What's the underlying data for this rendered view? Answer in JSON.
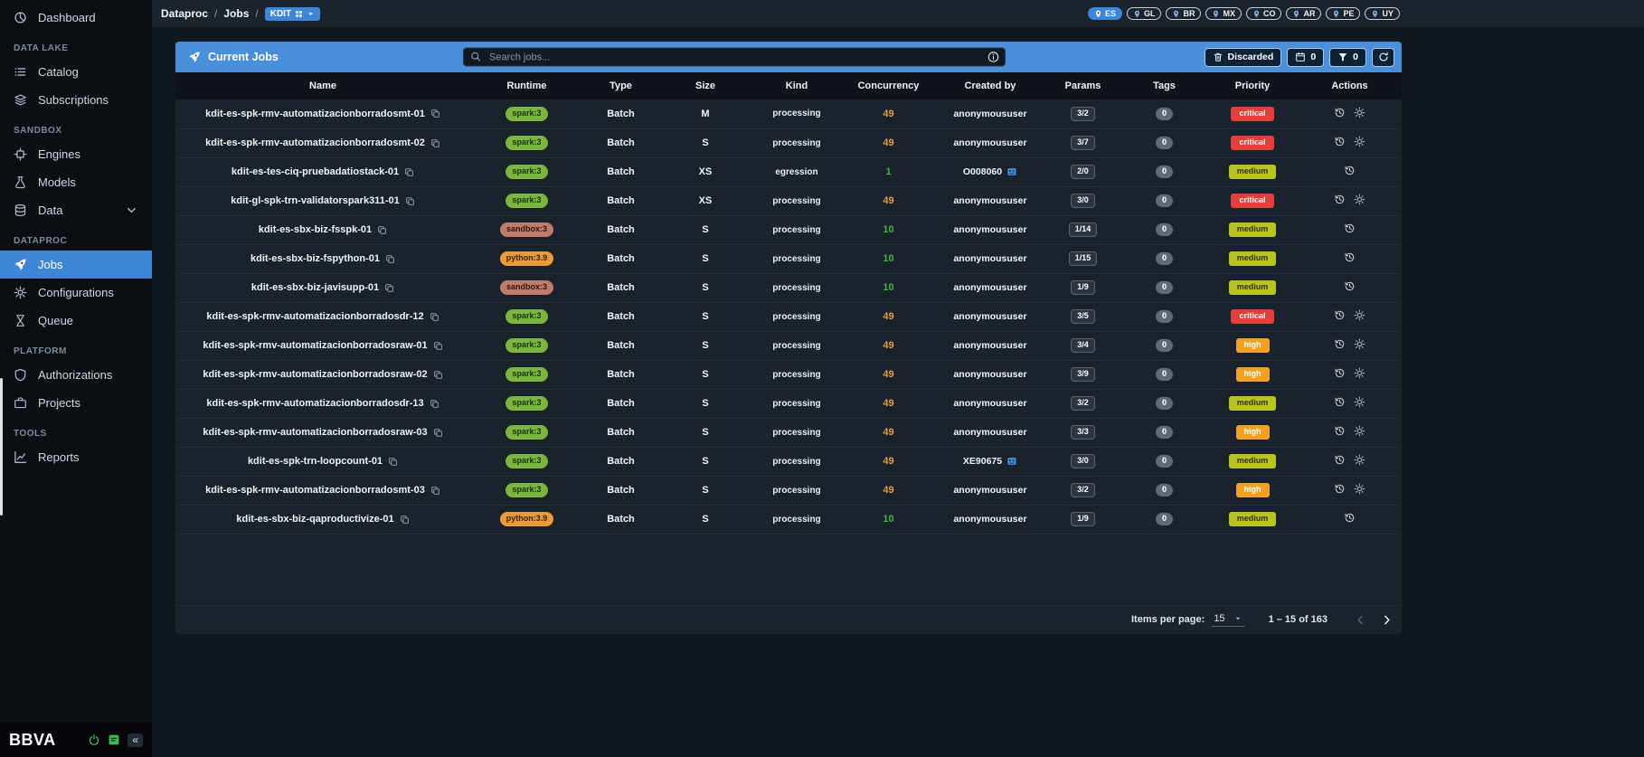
{
  "colors": {
    "accent": "#3f87d6",
    "header_blue": "#4a8fd9",
    "spark_badge": "#7cb53e",
    "sandbox_badge": "#bc7d6b",
    "python_badge": "#e89a3c",
    "priority_critical": "#e4403a",
    "priority_high": "#f0a028",
    "priority_medium": "#b8c426",
    "concurrency_busy": "#e8a23d",
    "concurrency_free": "#43b54a",
    "status_green": "#3fb950"
  },
  "topbar": {
    "breadcrumb": [
      "Dataproc",
      "Jobs"
    ],
    "env_badge": "KDIT",
    "regions": [
      {
        "code": "ES",
        "active": true
      },
      {
        "code": "GL",
        "active": false
      },
      {
        "code": "BR",
        "active": false
      },
      {
        "code": "MX",
        "active": false
      },
      {
        "code": "CO",
        "active": false
      },
      {
        "code": "AR",
        "active": false
      },
      {
        "code": "PE",
        "active": false
      },
      {
        "code": "UY",
        "active": false
      }
    ]
  },
  "sidebar": {
    "logo": "BBVA",
    "sections": [
      {
        "title": "",
        "items": [
          {
            "label": "Dashboard",
            "icon": "dashboard",
            "active": false,
            "expandable": false
          }
        ]
      },
      {
        "title": "DATA LAKE",
        "items": [
          {
            "label": "Catalog",
            "icon": "catalog",
            "active": false,
            "expandable": false
          },
          {
            "label": "Subscriptions",
            "icon": "subscriptions",
            "active": false,
            "expandable": false
          }
        ]
      },
      {
        "title": "SANDBOX",
        "items": [
          {
            "label": "Engines",
            "icon": "engines",
            "active": false,
            "expandable": false
          },
          {
            "label": "Models",
            "icon": "models",
            "active": false,
            "expandable": false
          },
          {
            "label": "Data",
            "icon": "data",
            "active": false,
            "expandable": true
          }
        ]
      },
      {
        "title": "DATAPROC",
        "items": [
          {
            "label": "Jobs",
            "icon": "jobs",
            "active": true,
            "expandable": false
          },
          {
            "label": "Configurations",
            "icon": "configurations",
            "active": false,
            "expandable": false
          },
          {
            "label": "Queue",
            "icon": "queue",
            "active": false,
            "expandable": false
          }
        ]
      },
      {
        "title": "PLATFORM",
        "items": [
          {
            "label": "Authorizations",
            "icon": "authorizations",
            "active": false,
            "expandable": false
          },
          {
            "label": "Projects",
            "icon": "projects",
            "active": false,
            "expandable": false
          }
        ]
      },
      {
        "title": "TOOLS",
        "items": [
          {
            "label": "Reports",
            "icon": "reports",
            "active": false,
            "expandable": false
          }
        ]
      }
    ]
  },
  "panel": {
    "title": "Current Jobs",
    "search_placeholder": "Search jobs...",
    "buttons": {
      "discarded": "Discarded",
      "schedule_count": "0",
      "filter_count": "0"
    }
  },
  "table": {
    "columns": [
      "Name",
      "Runtime",
      "Type",
      "Size",
      "Kind",
      "Concurrency",
      "Created by",
      "Params",
      "Tags",
      "Priority",
      "Actions"
    ],
    "rows": [
      {
        "name": "kdit-es-spk-rmv-automatizacionborradosmt-01",
        "runtime": "spark:3",
        "runtime_kind": "spark",
        "type": "Batch",
        "size": "M",
        "kind": "processing",
        "concurrency": "49",
        "concurrency_state": "busy",
        "created_by": "anonymoususer",
        "created_by_badge": false,
        "params": "3/2",
        "tags": "0",
        "priority": "critical",
        "has_settings": true
      },
      {
        "name": "kdit-es-spk-rmv-automatizacionborradosmt-02",
        "runtime": "spark:3",
        "runtime_kind": "spark",
        "type": "Batch",
        "size": "S",
        "kind": "processing",
        "concurrency": "49",
        "concurrency_state": "busy",
        "created_by": "anonymoususer",
        "created_by_badge": false,
        "params": "3/7",
        "tags": "0",
        "priority": "critical",
        "has_settings": true
      },
      {
        "name": "kdit-es-tes-ciq-pruebadatiostack-01",
        "runtime": "spark:3",
        "runtime_kind": "spark",
        "type": "Batch",
        "size": "XS",
        "kind": "egression",
        "concurrency": "1",
        "concurrency_state": "free",
        "created_by": "O008060",
        "created_by_badge": true,
        "params": "2/0",
        "tags": "0",
        "priority": "medium",
        "has_settings": false
      },
      {
        "name": "kdit-gl-spk-trn-validatorspark311-01",
        "runtime": "spark:3",
        "runtime_kind": "spark",
        "type": "Batch",
        "size": "XS",
        "kind": "processing",
        "concurrency": "49",
        "concurrency_state": "busy",
        "created_by": "anonymoususer",
        "created_by_badge": false,
        "params": "3/0",
        "tags": "0",
        "priority": "critical",
        "has_settings": true
      },
      {
        "name": "kdit-es-sbx-biz-fsspk-01",
        "runtime": "sandbox:3",
        "runtime_kind": "sandbox",
        "type": "Batch",
        "size": "S",
        "kind": "processing",
        "concurrency": "10",
        "concurrency_state": "free",
        "created_by": "anonymoususer",
        "created_by_badge": false,
        "params": "1/14",
        "tags": "0",
        "priority": "medium",
        "has_settings": false
      },
      {
        "name": "kdit-es-sbx-biz-fspython-01",
        "runtime": "python:3.9",
        "runtime_kind": "python",
        "type": "Batch",
        "size": "S",
        "kind": "processing",
        "concurrency": "10",
        "concurrency_state": "free",
        "created_by": "anonymoususer",
        "created_by_badge": false,
        "params": "1/15",
        "tags": "0",
        "priority": "medium",
        "has_settings": false
      },
      {
        "name": "kdit-es-sbx-biz-javisupp-01",
        "runtime": "sandbox:3",
        "runtime_kind": "sandbox",
        "type": "Batch",
        "size": "S",
        "kind": "processing",
        "concurrency": "10",
        "concurrency_state": "free",
        "created_by": "anonymoususer",
        "created_by_badge": false,
        "params": "1/9",
        "tags": "0",
        "priority": "medium",
        "has_settings": false
      },
      {
        "name": "kdit-es-spk-rmv-automatizacionborradosdr-12",
        "runtime": "spark:3",
        "runtime_kind": "spark",
        "type": "Batch",
        "size": "S",
        "kind": "processing",
        "concurrency": "49",
        "concurrency_state": "busy",
        "created_by": "anonymoususer",
        "created_by_badge": false,
        "params": "3/5",
        "tags": "0",
        "priority": "critical",
        "has_settings": true
      },
      {
        "name": "kdit-es-spk-rmv-automatizacionborradosraw-01",
        "runtime": "spark:3",
        "runtime_kind": "spark",
        "type": "Batch",
        "size": "S",
        "kind": "processing",
        "concurrency": "49",
        "concurrency_state": "busy",
        "created_by": "anonymoususer",
        "created_by_badge": false,
        "params": "3/4",
        "tags": "0",
        "priority": "high",
        "has_settings": true
      },
      {
        "name": "kdit-es-spk-rmv-automatizacionborradosraw-02",
        "runtime": "spark:3",
        "runtime_kind": "spark",
        "type": "Batch",
        "size": "S",
        "kind": "processing",
        "concurrency": "49",
        "concurrency_state": "busy",
        "created_by": "anonymoususer",
        "created_by_badge": false,
        "params": "3/9",
        "tags": "0",
        "priority": "high",
        "has_settings": true
      },
      {
        "name": "kdit-es-spk-rmv-automatizacionborradosdr-13",
        "runtime": "spark:3",
        "runtime_kind": "spark",
        "type": "Batch",
        "size": "S",
        "kind": "processing",
        "concurrency": "49",
        "concurrency_state": "busy",
        "created_by": "anonymoususer",
        "created_by_badge": false,
        "params": "3/2",
        "tags": "0",
        "priority": "medium",
        "has_settings": true
      },
      {
        "name": "kdit-es-spk-rmv-automatizacionborradosraw-03",
        "runtime": "spark:3",
        "runtime_kind": "spark",
        "type": "Batch",
        "size": "S",
        "kind": "processing",
        "concurrency": "49",
        "concurrency_state": "busy",
        "created_by": "anonymoususer",
        "created_by_badge": false,
        "params": "3/3",
        "tags": "0",
        "priority": "high",
        "has_settings": true
      },
      {
        "name": "kdit-es-spk-trn-loopcount-01",
        "runtime": "spark:3",
        "runtime_kind": "spark",
        "type": "Batch",
        "size": "S",
        "kind": "processing",
        "concurrency": "49",
        "concurrency_state": "busy",
        "created_by": "XE90675",
        "created_by_badge": true,
        "params": "3/0",
        "tags": "0",
        "priority": "medium",
        "has_settings": true
      },
      {
        "name": "kdit-es-spk-rmv-automatizacionborradosmt-03",
        "runtime": "spark:3",
        "runtime_kind": "spark",
        "type": "Batch",
        "size": "S",
        "kind": "processing",
        "concurrency": "49",
        "concurrency_state": "busy",
        "created_by": "anonymoususer",
        "created_by_badge": false,
        "params": "3/2",
        "tags": "0",
        "priority": "high",
        "has_settings": true
      },
      {
        "name": "kdit-es-sbx-biz-qaproductivize-01",
        "runtime": "python:3.9",
        "runtime_kind": "python",
        "type": "Batch",
        "size": "S",
        "kind": "processing",
        "concurrency": "10",
        "concurrency_state": "free",
        "created_by": "anonymoususer",
        "created_by_badge": false,
        "params": "1/9",
        "tags": "0",
        "priority": "medium",
        "has_settings": false
      }
    ]
  },
  "pagination": {
    "items_per_page_label": "Items per page:",
    "items_per_page": "15",
    "range": "1 – 15 of 163"
  }
}
